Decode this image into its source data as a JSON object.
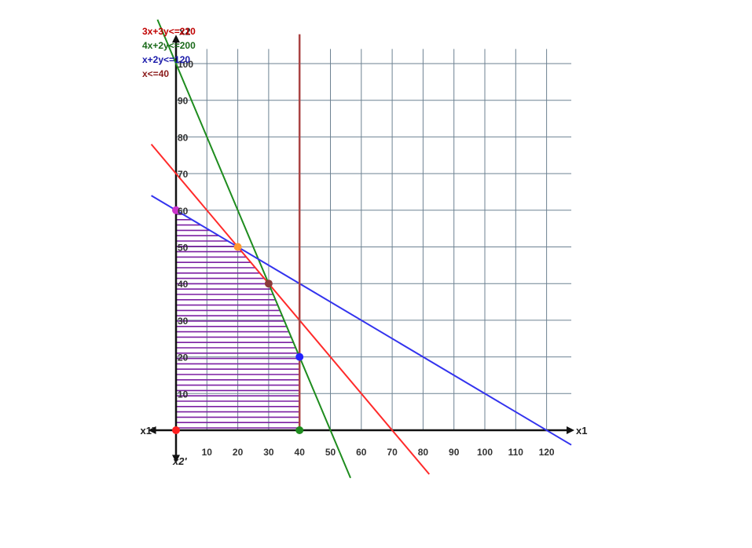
{
  "chart_data": {
    "type": "line",
    "title": "",
    "x_axis_label": "x1",
    "x_axis_label_neg": "x1'",
    "y_axis_label": "x2",
    "y_axis_label_neg": "x2'",
    "xlim": [
      -9,
      128
    ],
    "ylim": [
      -13,
      108
    ],
    "x_ticks": [
      10,
      20,
      30,
      40,
      50,
      60,
      70,
      80,
      90,
      100,
      110,
      120
    ],
    "y_ticks": [
      10,
      20,
      30,
      40,
      50,
      60,
      70,
      80,
      90,
      100
    ],
    "grid": true,
    "legend_placement": "top-left",
    "series": [
      {
        "name": "3x+3y<=210",
        "color": "#ff2a2a",
        "legend_color": "#c00000",
        "points": [
          [
            -8,
            78
          ],
          [
            82,
            -12
          ]
        ]
      },
      {
        "name": "4x+2y<=200",
        "color": "#1e8c1e",
        "legend_color": "#1a6a1a",
        "points": [
          [
            -6,
            112
          ],
          [
            56.5,
            -13
          ]
        ]
      },
      {
        "name": "x+2y<=120",
        "color": "#3333ee",
        "legend_color": "#1a1aaa",
        "points": [
          [
            -8,
            64
          ],
          [
            128,
            -4
          ]
        ]
      },
      {
        "name": "x<=40",
        "color": "#aa4444",
        "legend_color": "#8b1a1a",
        "points": [
          [
            40,
            108
          ],
          [
            40,
            0
          ]
        ]
      }
    ],
    "feasible_region": [
      [
        0,
        0
      ],
      [
        0,
        60
      ],
      [
        20,
        50
      ],
      [
        30,
        40
      ],
      [
        40,
        20
      ],
      [
        40,
        0
      ]
    ],
    "feasible_fill_color": "#7b1fa2",
    "vertices": [
      {
        "x": 0,
        "y": 0,
        "color": "#ff2020"
      },
      {
        "x": 0,
        "y": 60,
        "color": "#cc33cc"
      },
      {
        "x": 20,
        "y": 50,
        "color": "#ff9933"
      },
      {
        "x": 30,
        "y": 40,
        "color": "#8b3a3a"
      },
      {
        "x": 40,
        "y": 20,
        "color": "#2222ff"
      },
      {
        "x": 40,
        "y": 0,
        "color": "#1e8c1e"
      }
    ]
  }
}
